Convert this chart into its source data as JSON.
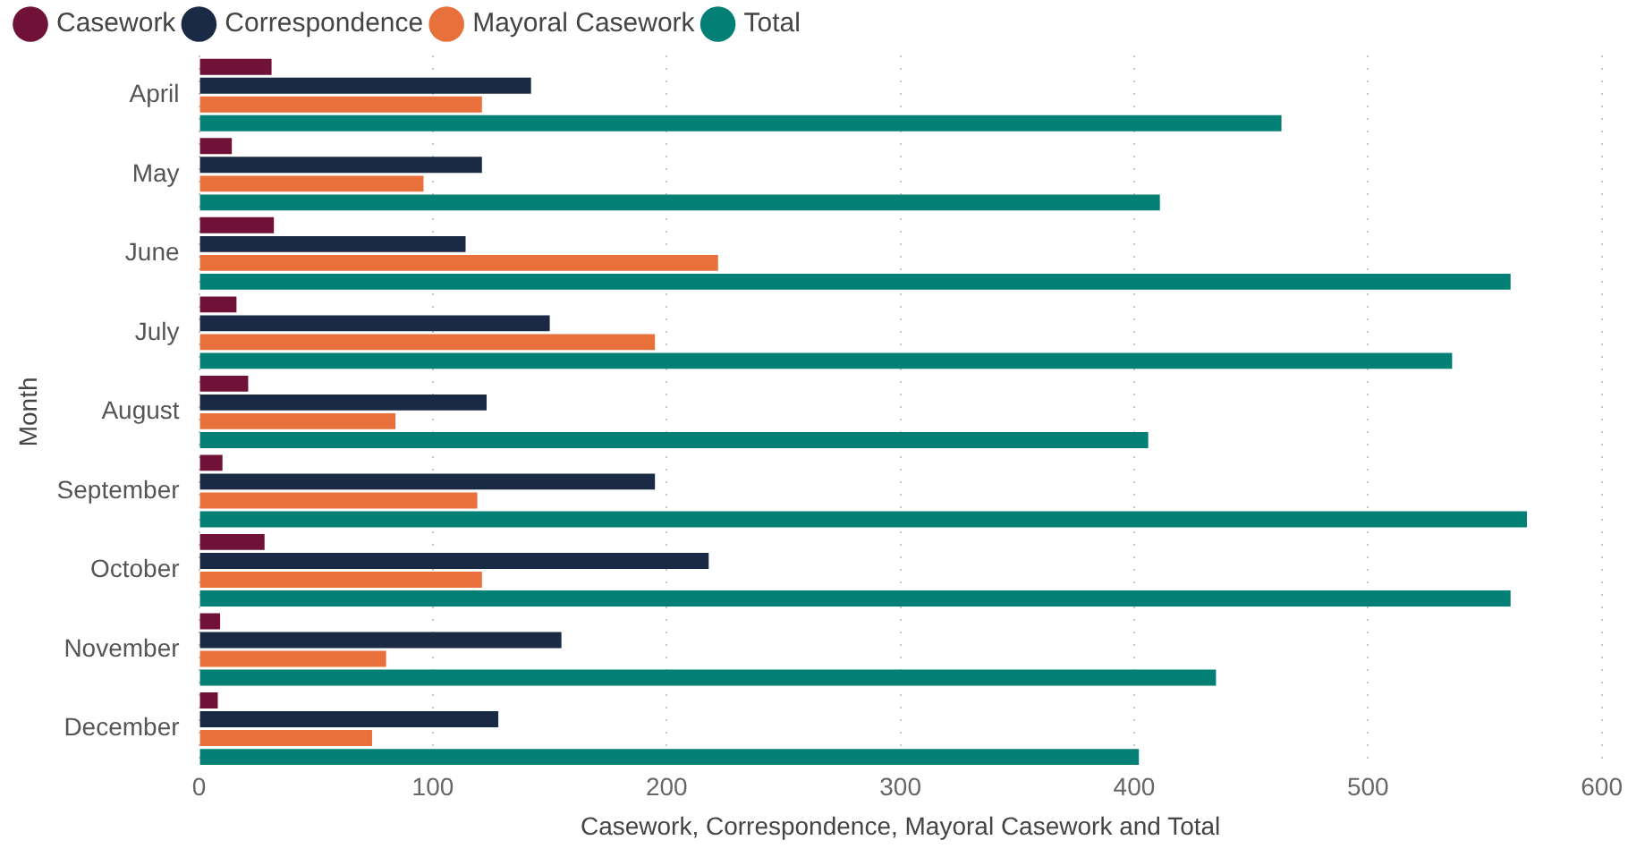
{
  "chart_data": {
    "type": "bar",
    "orientation": "horizontal",
    "xlabel": "Casework, Correspondence, Mayoral Casework and Total",
    "ylabel": "Month",
    "categories": [
      "April",
      "May",
      "June",
      "July",
      "August",
      "September",
      "October",
      "November",
      "December"
    ],
    "series": [
      {
        "name": "Casework",
        "color": "#701238",
        "values": [
          31,
          14,
          32,
          16,
          21,
          10,
          28,
          9,
          8
        ]
      },
      {
        "name": "Correspondence",
        "color": "#1b2a44",
        "values": [
          142,
          121,
          114,
          150,
          123,
          195,
          218,
          155,
          128
        ]
      },
      {
        "name": "Mayoral Casework",
        "color": "#e8703a",
        "values": [
          121,
          96,
          222,
          195,
          84,
          119,
          121,
          80,
          74
        ]
      },
      {
        "name": "Total",
        "color": "#028076",
        "values": [
          463,
          411,
          561,
          536,
          406,
          568,
          561,
          435,
          402
        ]
      }
    ],
    "xlim": [
      0,
      600
    ],
    "xticks": [
      0,
      100,
      200,
      300,
      400,
      500,
      600
    ],
    "grid": "x",
    "legend": "top left"
  }
}
